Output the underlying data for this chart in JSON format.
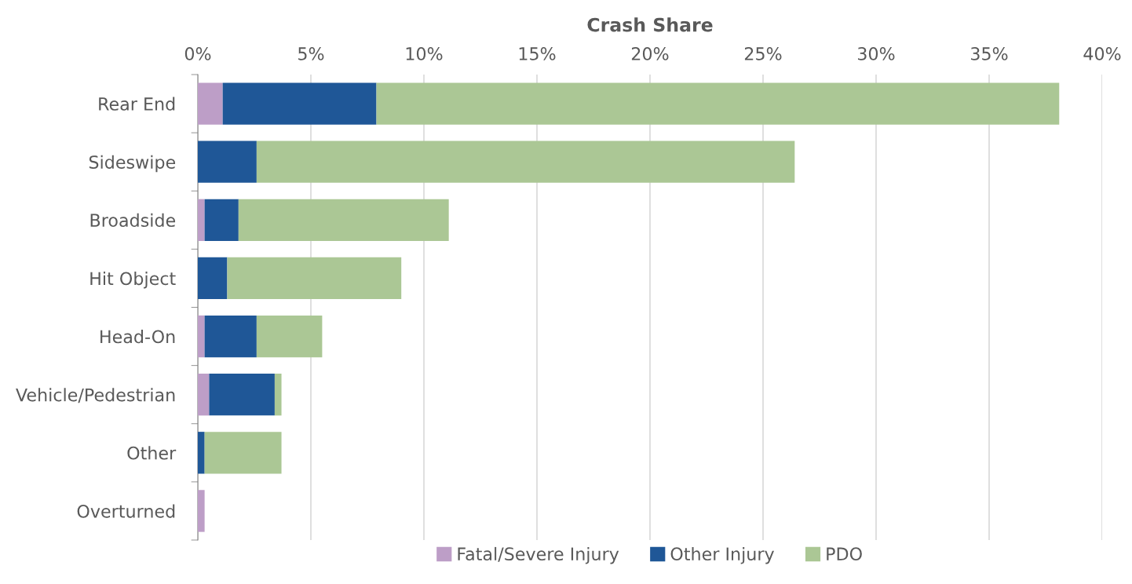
{
  "chart_data": {
    "type": "bar",
    "orientation": "horizontal",
    "stacked": true,
    "xlabel": "Crash Share",
    "categories": [
      "Rear End",
      "Sideswipe",
      "Broadside",
      "Hit Object",
      "Head-On",
      "Vehicle/Pedestrian",
      "Other",
      "Overturned"
    ],
    "series": [
      {
        "name": "Fatal/Severe Injury",
        "color": "#bd9ec7",
        "values": [
          1.1,
          0,
          0.3,
          0,
          0.3,
          0.5,
          0,
          0.3
        ]
      },
      {
        "name": "Other Injury",
        "color": "#1f5797",
        "values": [
          6.8,
          2.6,
          1.5,
          1.3,
          2.3,
          2.9,
          0.3,
          0
        ]
      },
      {
        "name": "PDO",
        "color": "#abc795",
        "values": [
          30.2,
          23.8,
          9.3,
          7.7,
          2.9,
          0.3,
          3.4,
          0
        ]
      }
    ],
    "xlim": [
      0,
      40
    ],
    "xticks": [
      {
        "value": 0,
        "label": "0%"
      },
      {
        "value": 5,
        "label": "5%"
      },
      {
        "value": 10,
        "label": "10%"
      },
      {
        "value": 15,
        "label": "15%"
      },
      {
        "value": 20,
        "label": "20%"
      },
      {
        "value": 25,
        "label": "25%"
      },
      {
        "value": 30,
        "label": "30%"
      },
      {
        "value": 35,
        "label": "35%"
      },
      {
        "value": 40,
        "label": "40%"
      }
    ],
    "grid": "x",
    "legend": "bottom"
  }
}
